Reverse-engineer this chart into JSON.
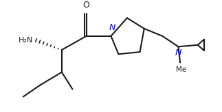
{
  "bg_color": "#ffffff",
  "line_color": "#1a1a1a",
  "N_color": "#0000cc",
  "label_H2N": "H₂N",
  "label_O": "O",
  "label_N": "N",
  "label_Me": "Me",
  "figsize": [
    3.23,
    1.64
  ],
  "dpi": 100,
  "xlim": [
    0,
    10
  ],
  "ylim": [
    0,
    5
  ]
}
